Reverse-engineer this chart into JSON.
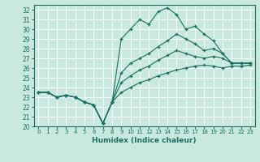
{
  "xlabel": "Humidex (Indice chaleur)",
  "bg_color": "#c8e8e0",
  "grid_color": "#ffffff",
  "line_color": "#1a7060",
  "xlim": [
    -0.5,
    23.5
  ],
  "ylim": [
    20,
    32.5
  ],
  "yticks": [
    20,
    21,
    22,
    23,
    24,
    25,
    26,
    27,
    28,
    29,
    30,
    31,
    32
  ],
  "xticks": [
    0,
    1,
    2,
    3,
    4,
    5,
    6,
    7,
    8,
    9,
    10,
    11,
    12,
    13,
    14,
    15,
    16,
    17,
    18,
    19,
    20,
    21,
    22,
    23
  ],
  "line_max": [
    23.5,
    23.5,
    23.0,
    23.2,
    23.0,
    22.5,
    22.2,
    20.3,
    22.5,
    29.0,
    30.0,
    31.0,
    30.5,
    31.8,
    32.2,
    31.5,
    30.0,
    30.3,
    29.5,
    28.8,
    27.5,
    26.5,
    26.5,
    26.5
  ],
  "line_p75": [
    23.5,
    23.5,
    23.0,
    23.2,
    23.0,
    22.5,
    22.2,
    20.3,
    22.5,
    25.5,
    26.5,
    27.0,
    27.5,
    28.2,
    28.8,
    29.5,
    29.0,
    28.5,
    27.8,
    28.0,
    27.5,
    26.5,
    26.5,
    26.5
  ],
  "line_med": [
    23.5,
    23.5,
    23.0,
    23.2,
    23.0,
    22.5,
    22.2,
    20.3,
    22.5,
    24.5,
    25.2,
    25.8,
    26.2,
    26.8,
    27.3,
    27.8,
    27.5,
    27.2,
    27.0,
    27.2,
    27.0,
    26.5,
    26.5,
    26.5
  ],
  "line_min": [
    23.5,
    23.5,
    23.0,
    23.2,
    23.0,
    22.5,
    22.2,
    20.3,
    22.5,
    23.5,
    24.0,
    24.5,
    24.8,
    25.2,
    25.5,
    25.8,
    26.0,
    26.2,
    26.3,
    26.2,
    26.0,
    26.2,
    26.2,
    26.3
  ]
}
